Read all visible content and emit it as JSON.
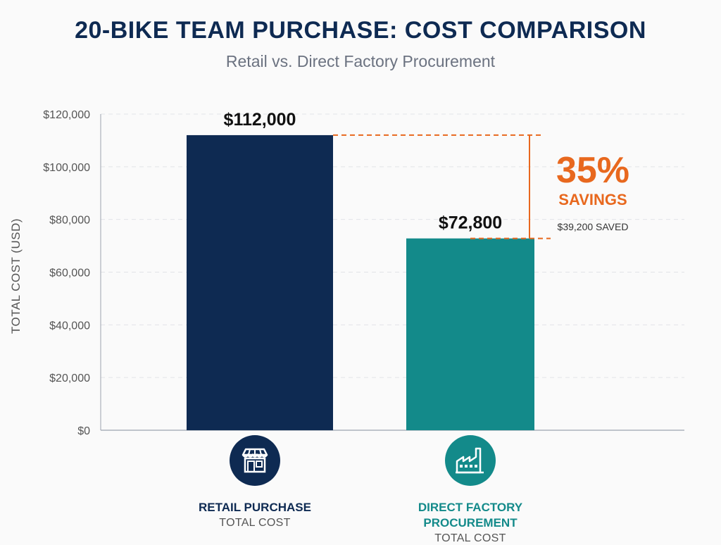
{
  "title": "20-BIKE TEAM PURCHASE: COST COMPARISON",
  "subtitle": "Retail vs. Direct Factory Procurement",
  "colors": {
    "retail": "#0e2a52",
    "factory": "#138a8a",
    "accent": "#e8681e",
    "title": "#0e2a52"
  },
  "annotation": {
    "percent": "35%",
    "label": "SAVINGS",
    "detail": "$39,200 SAVED"
  },
  "categories_info": [
    {
      "name": "RETAIL PURCHASE",
      "sub": "TOTAL COST",
      "icon": "storefront-icon"
    },
    {
      "name": "DIRECT FACTORY\nPROCUREMENT",
      "sub": "TOTAL COST",
      "icon": "factory-icon"
    }
  ],
  "chart_data": {
    "type": "bar",
    "categories": [
      "RETAIL PURCHASE",
      "DIRECT FACTORY PROCUREMENT"
    ],
    "values": [
      112000,
      72800
    ],
    "value_labels": [
      "$112,000",
      "$72,800"
    ],
    "title": "20-BIKE TEAM PURCHASE: COST COMPARISON",
    "subtitle": "Retail vs. Direct Factory Procurement",
    "xlabel": "",
    "ylabel": "TOTAL COST (USD)",
    "ylim": [
      0,
      120000
    ],
    "yticks": [
      0,
      20000,
      40000,
      60000,
      80000,
      100000,
      120000
    ],
    "ytick_labels": [
      "$0",
      "$20,000",
      "$40,000",
      "$60,000",
      "$80,000",
      "$100,000",
      "$120,000"
    ],
    "grid": true,
    "legend": "none"
  }
}
